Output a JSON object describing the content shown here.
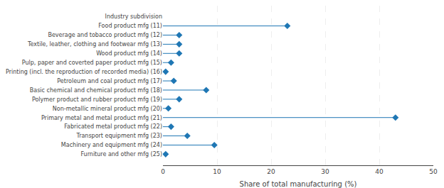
{
  "chart_data": {
    "type": "lollipop",
    "orientation": "horizontal",
    "categories": [
      "Industry subdivision",
      "Food product mfg (11)",
      "Beverage and tobacco product mfg (12)",
      "Textile, leather, clothing and footwear mfg (13)",
      "Wood product mfg (14)",
      "Pulp, paper and coverted paper product mfg (15)",
      "Printing (incl. the reproduction of recorded media) (16)",
      "Petroleum and coal product mfg (17)",
      "Basic chemical and chemical product mfg (18)",
      "Polymer product and rubber product mfg (19)",
      "Non-metallic mineral product mfg (20)",
      "Primary metal and metal product mfg (21)",
      "Fabricated metal product mfg (22)",
      "Transport equipment mfg (23)",
      "Machinery and equipment mfg (24)",
      "Furniture and other mfg (25)"
    ],
    "values": [
      null,
      23.0,
      3.0,
      3.0,
      3.0,
      1.5,
      0.5,
      2.0,
      8.0,
      3.0,
      1.0,
      43.0,
      1.5,
      4.5,
      9.5,
      0.5
    ],
    "xlabel": "Share of total manufacturing (%)",
    "xlim": [
      0,
      50
    ],
    "xticks": [
      0,
      10,
      20,
      30,
      40,
      50
    ],
    "marker": "diamond",
    "grid": true
  }
}
